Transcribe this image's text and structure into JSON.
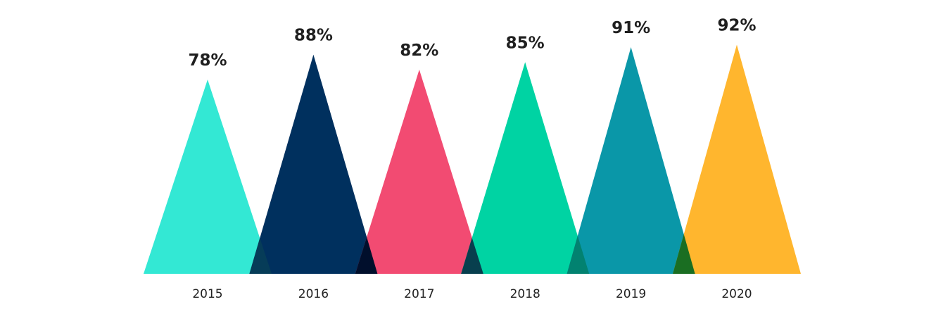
{
  "chart_data": {
    "type": "bar",
    "shape": "triangle",
    "categories": [
      "2015",
      "2016",
      "2017",
      "2018",
      "2019",
      "2020"
    ],
    "values": [
      78,
      88,
      82,
      85,
      91,
      92
    ],
    "value_labels": [
      "78%",
      "88%",
      "82%",
      "85%",
      "91%",
      "92%"
    ],
    "unit": "%",
    "colors": [
      "#33E8D4",
      "#00305E",
      "#F24B72",
      "#00D3A3",
      "#0A97A8",
      "#FFB62E"
    ],
    "overlap_colors": [
      "#063C58",
      "#010F2C",
      "#083F4E",
      "#028270",
      "#1A6E22"
    ],
    "title": "",
    "xlabel": "",
    "ylabel": "",
    "ylim": [
      0,
      100
    ],
    "grid": false,
    "legend": "none"
  }
}
